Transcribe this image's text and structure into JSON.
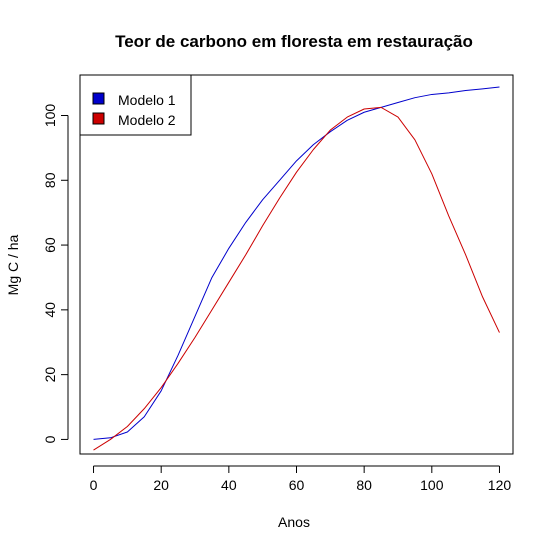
{
  "chart_data": {
    "type": "line",
    "title": "Teor de carbono em floresta em restauração",
    "xlabel": "Anos",
    "ylabel": "Mg C / ha",
    "xlim": [
      -4,
      124
    ],
    "ylim": [
      -4.5,
      112.5
    ],
    "xticks": [
      0,
      20,
      40,
      60,
      80,
      100,
      120
    ],
    "yticks": [
      0,
      20,
      40,
      60,
      80,
      100
    ],
    "grid": false,
    "legend_position": "top-left",
    "series": [
      {
        "name": "Modelo 1",
        "color": "#0000cc",
        "x": [
          0,
          5,
          10,
          15,
          20,
          25,
          30,
          35,
          40,
          45,
          50,
          55,
          60,
          65,
          70,
          75,
          80,
          85,
          90,
          95,
          100,
          105,
          110,
          115,
          120
        ],
        "y": [
          0,
          0.5,
          2.3,
          7,
          15,
          26,
          38,
          50,
          59,
          67,
          74,
          80,
          86,
          91,
          95,
          98.5,
          101,
          102.5,
          104,
          105.5,
          106.5,
          107,
          107.7,
          108.2,
          108.8
        ]
      },
      {
        "name": "Modelo 2",
        "color": "#cc0000",
        "x": [
          0,
          5,
          10,
          15,
          20,
          25,
          30,
          35,
          40,
          45,
          50,
          55,
          60,
          65,
          70,
          75,
          80,
          85,
          90,
          95,
          100,
          105,
          110,
          115,
          120
        ],
        "y": [
          -3.3,
          0,
          4,
          9.5,
          16,
          23.5,
          31.5,
          40,
          48.5,
          57,
          66,
          74.5,
          82.5,
          89.5,
          95.5,
          99.5,
          102,
          102.5,
          99.5,
          92.5,
          82,
          69,
          57,
          44,
          33
        ]
      }
    ]
  }
}
